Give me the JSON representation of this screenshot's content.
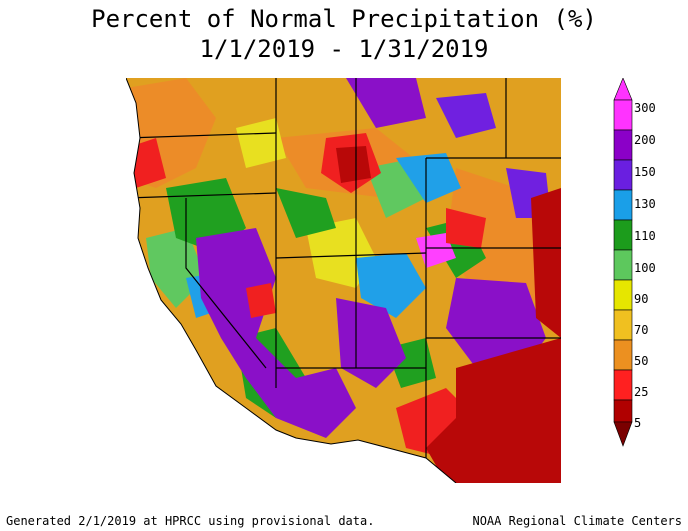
{
  "header": {
    "title_line1": "Percent of Normal Precipitation (%)",
    "title_line2": "1/1/2019 - 1/31/2019"
  },
  "legend": {
    "colors": {
      "c300": "#ff33ff",
      "c200": "#8b00c8",
      "c150": "#6a1fe0",
      "c130": "#1a9fe8",
      "c110": "#1c9c1c",
      "c100": "#5dc85d",
      "c90": "#e6e600",
      "c70": "#f0c020",
      "c50": "#ec9020",
      "c25": "#ff2020",
      "c5": "#b00000",
      "c0": "#7a0000"
    },
    "labels": [
      "300",
      "200",
      "150",
      "130",
      "110",
      "100",
      "90",
      "70",
      "50",
      "25",
      "5"
    ]
  },
  "map": {
    "colors": {
      "base": "#e0a020",
      "orange": "#ec8c28",
      "yellow": "#e8e020",
      "lightgreen": "#60c860",
      "green": "#20a020",
      "blue": "#20a0e8",
      "purple": "#8a10c8",
      "violet": "#7020e0",
      "magenta": "#ff40ff",
      "red": "#f02020",
      "darkred": "#b80808",
      "border": "#000000"
    }
  },
  "footer": {
    "left": "Generated 2/1/2019 at HPRCC using provisional data.",
    "right": "NOAA Regional Climate Centers"
  }
}
